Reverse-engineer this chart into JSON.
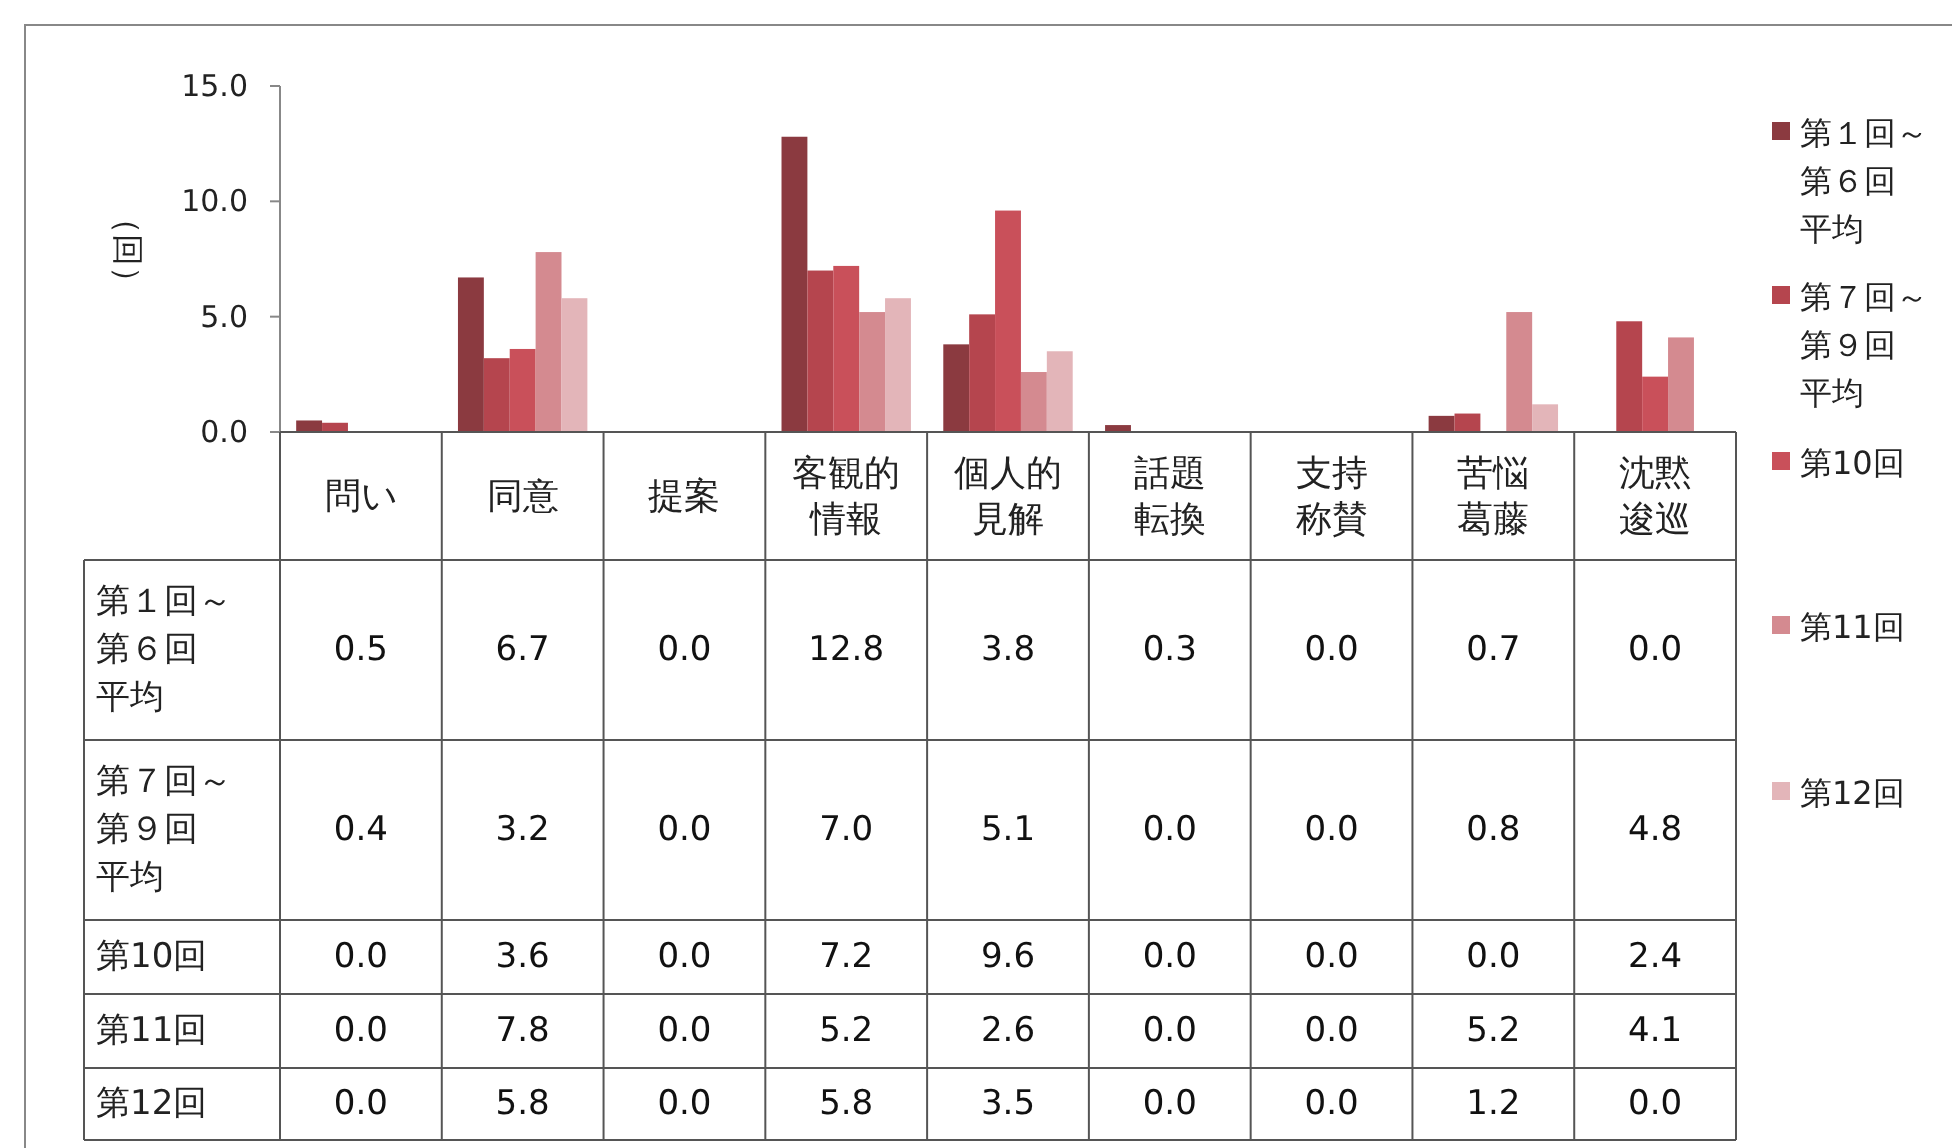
{
  "chart_data": {
    "type": "bar",
    "ylabel": "（回）",
    "categories": [
      "問い",
      "同意",
      "提案",
      "客観的情報",
      "個人的見解",
      "話題転換",
      "支持称賛",
      "苦悩葛藤",
      "沈黙逡巡"
    ],
    "ylim": [
      0,
      15
    ],
    "yticks": [
      {
        "value": 0,
        "label": "0.0"
      },
      {
        "value": 5,
        "label": "5.0"
      },
      {
        "value": 10,
        "label": "10.0"
      },
      {
        "value": 15,
        "label": "15.0"
      }
    ],
    "legend": "right",
    "grid": false,
    "series": [
      {
        "name": "第１回～第６回平均",
        "color": "#8b3a40",
        "values": [
          0.5,
          6.7,
          0.0,
          12.8,
          3.8,
          0.3,
          0.0,
          0.7,
          0.0
        ],
        "value_labels": [
          "0.5",
          "6.7",
          "0.0",
          "12.8",
          "3.8",
          "0.3",
          "0.0",
          "0.7",
          "0.0"
        ]
      },
      {
        "name": "第７回～第９回平均",
        "color": "#b5454e",
        "values": [
          0.4,
          3.2,
          0.0,
          7.0,
          5.1,
          0.0,
          0.0,
          0.8,
          4.8
        ],
        "value_labels": [
          "0.4",
          "3.2",
          "0.0",
          "7.0",
          "5.1",
          "0.0",
          "0.0",
          "0.8",
          "4.8"
        ]
      },
      {
        "name": "第10回",
        "color": "#c9505a",
        "values": [
          0.0,
          3.6,
          0.0,
          7.2,
          9.6,
          0.0,
          0.0,
          0.0,
          2.4
        ],
        "value_labels": [
          "0.0",
          "3.6",
          "0.0",
          "7.2",
          "9.6",
          "0.0",
          "0.0",
          "0.0",
          "2.4"
        ]
      },
      {
        "name": "第11回",
        "color": "#d48a90",
        "values": [
          0.0,
          7.8,
          0.0,
          5.2,
          2.6,
          0.0,
          0.0,
          5.2,
          4.1
        ],
        "value_labels": [
          "0.0",
          "7.8",
          "0.0",
          "5.2",
          "2.6",
          "0.0",
          "0.0",
          "5.2",
          "4.1"
        ]
      },
      {
        "name": "第12回",
        "color": "#e3b5b9",
        "values": [
          0.0,
          5.8,
          0.0,
          5.8,
          3.5,
          0.0,
          0.0,
          1.2,
          0.0
        ],
        "value_labels": [
          "0.0",
          "5.8",
          "0.0",
          "5.8",
          "3.5",
          "0.0",
          "0.0",
          "1.2",
          "0.0"
        ]
      }
    ]
  }
}
